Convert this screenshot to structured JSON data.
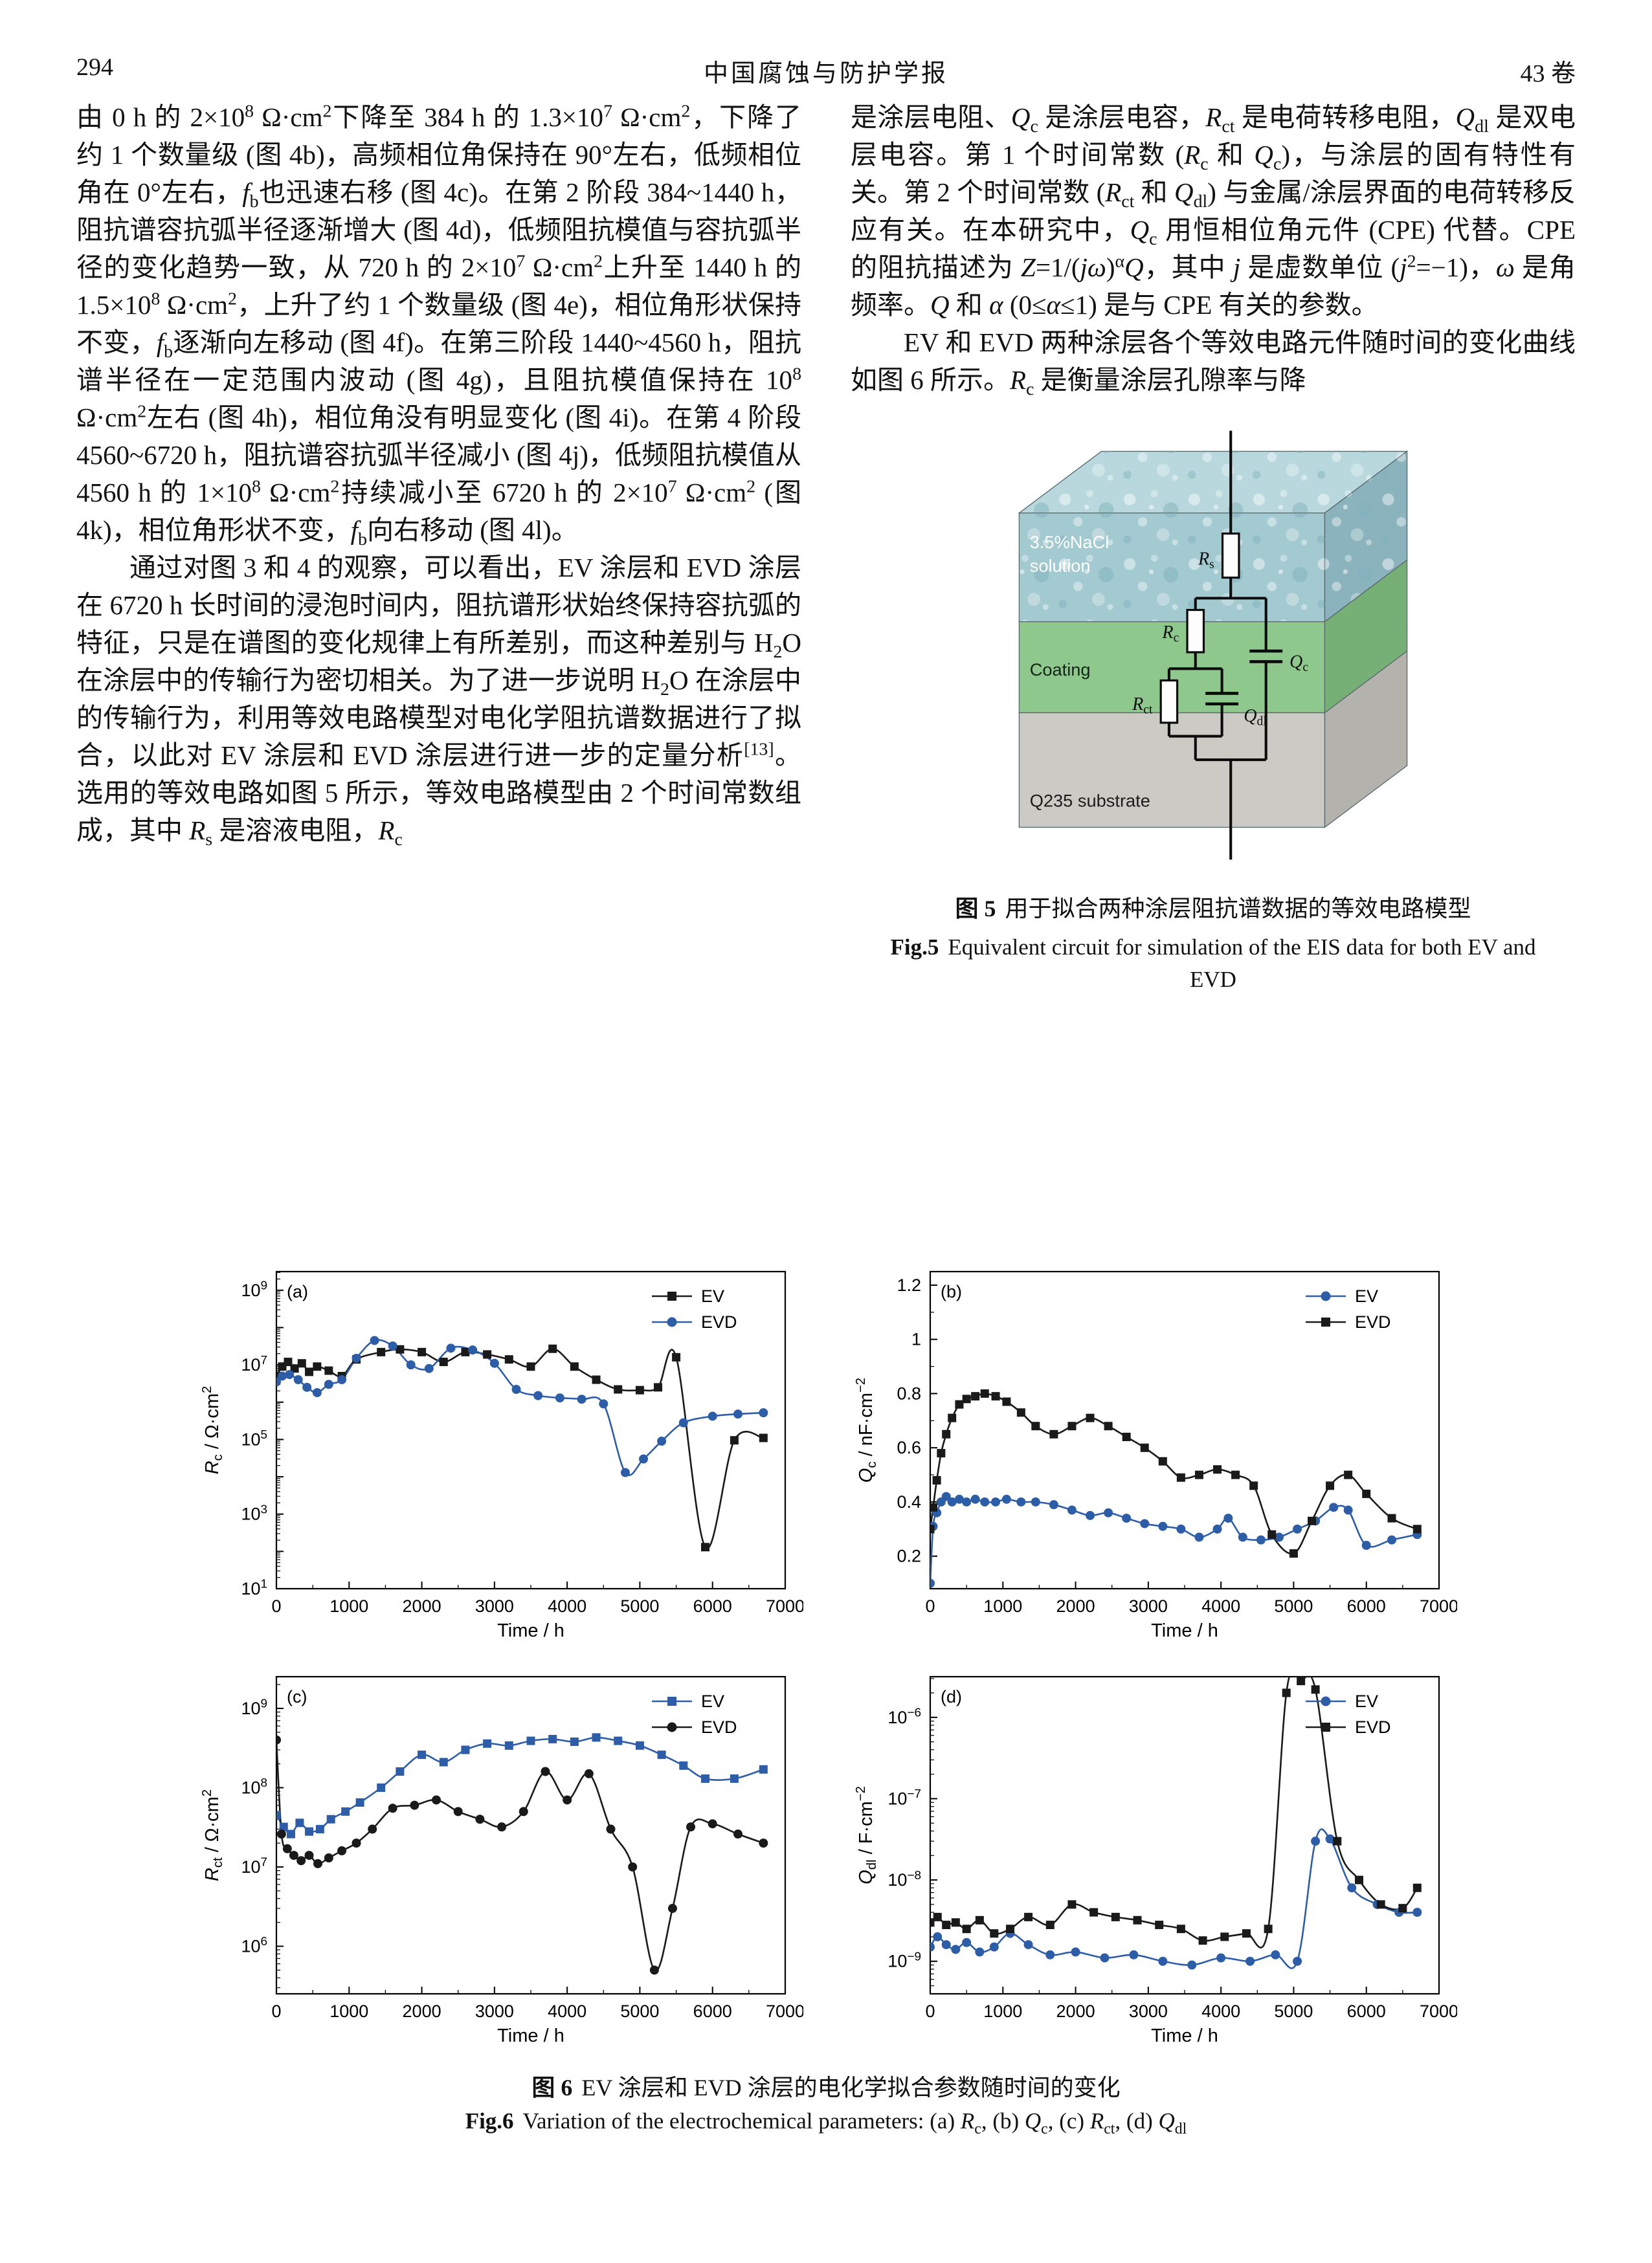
{
  "page": {
    "number": "294",
    "journal": "中国腐蚀与防护学报",
    "volume": "43 卷"
  },
  "article": {
    "left_column": {
      "p1": "由 0 h 的 2×10^{8} Ω·cm^{2}下降至 384 h 的 1.3×10^{7} Ω·cm^{2}，下降了约 1 个数量级 (图 4b)，高频相位角保持在 90°左右，低频相位角在 0°左右，~{f}_{b}也迅速右移 (图 4c)。在第 2 阶段 384~1440 h，阻抗谱容抗弧半径逐渐增大 (图 4d)，低频阻抗模值与容抗弧半径的变化趋势一致，从 720 h 的 2×10^{7} Ω·cm^{2}上升至 1440 h 的 1.5×10^{8} Ω·cm^{2}，上升了约 1 个数量级 (图 4e)，相位角形状保持不变，~{f}_{b}逐渐向左移动 (图 4f)。在第三阶段 1440~4560 h，阻抗谱半径在一定范围内波动 (图 4g)，且阻抗模值保持在 10^{8} Ω·cm^{2}左右 (图 4h)，相位角没有明显变化 (图 4i)。在第 4 阶段 4560~6720 h，阻抗谱容抗弧半径减小 (图 4j)，低频阻抗模值从 4560 h 的 1×10^{8} Ω·cm^{2}持续减小至 6720 h 的 2×10^{7} Ω·cm^{2} (图 4k)，相位角形状不变，~{f}_{b}向右移动 (图 4l)。",
      "p2": "通过对图 3 和 4 的观察，可以看出，EV 涂层和 EVD 涂层在 6720 h 长时间的浸泡时间内，阻抗谱形状始终保持容抗弧的特征，只是在谱图的变化规律上有所差别，而这种差别与 H_{2}O 在涂层中的传输行为密切相关。为了进一步说明 H_{2}O 在涂层中的传输行为，利用等效电路模型对电化学阻抗谱数据进行了拟合，以此对 EV 涂层和 EVD 涂层进行进一步的定量分析^{[13]}。选用的等效电路如图 5 所示，等效电路模型由 2 个时间常数组成，其中 ~{R}_{s} 是溶液电阻，~{R}_{c}"
    },
    "right_column": {
      "p1": "是涂层电阻、~{Q}_{c} 是涂层电容，~{R}_{ct} 是电荷转移电阻，~{Q}_{dl} 是双电层电容。第 1 个时间常数 (~{R}_{c} 和 ~{Q}_{c})，与涂层的固有特性有关。第 2 个时间常数 (~{R}_{ct} 和 ~{Q}_{dl}) 与金属/涂层界面的电荷转移反应有关。在本研究中，~{Q}_{c} 用恒相位角元件 (CPE) 代替。CPE 的阻抗描述为 ~{Z}=1/(~{j}~{ω})^{α}~{Q}，其中 ~{j} 是虚数单位 (~{j}^{2}=−1)，~{ω} 是角频率。~{Q} 和 ~{α} (0≤~{α}≤1) 是与 CPE 有关的参数。",
      "p2": "EV 和 EVD 两种涂层各个等效电路元件随时间的变化曲线如图 6 所示。~{R}_{c} 是衡量涂层孔隙率与降"
    }
  },
  "figure5": {
    "labels": {
      "solution_line1": "3.5%NaCl",
      "solution_line2": "solution",
      "coating": "Coating",
      "substrate": "Q235 substrate",
      "rs": "~{R}_{s}",
      "rc": "~{R}_{c}",
      "qc": "~{Q}_{c}",
      "rct": "~{R}_{ct}",
      "qdl": "~{Q}_{dl}"
    },
    "colors": {
      "solution_top": "#b9d8dd",
      "solution_front": "#a3c9d1",
      "solution_side": "#8bb3bd",
      "coating_front": "#8fc88d",
      "coating_side": "#77b076",
      "substrate_front": "#cbcac5",
      "substrate_side": "#b3b2ad"
    },
    "caption_zh_label": "图 5",
    "caption_zh_text": "用于拟合两种涂层阻抗谱数据的等效电路模型",
    "caption_en_label": "Fig.5",
    "caption_en_text": "Equivalent circuit for simulation of the EIS data for both EV and EVD"
  },
  "figure6": {
    "caption_zh_label": "图 6",
    "caption_zh_text": "EV 涂层和 EVD 涂层的电化学拟合参数随时间的变化",
    "caption_en_label": "Fig.6",
    "caption_en_text": "Variation of the electrochemical parameters: (a) ~{R}_{c}, (b) ~{Q}_{c}, (c) ~{R}_{ct}, (d) ~{Q}_{dl}"
  },
  "chart_data": [
    {
      "type": "scatter",
      "panel_label": "(a)",
      "xlabel": "Time / h",
      "ylabel": "~{R}_{c} / Ω·cm^{2}",
      "xlim": [
        0,
        7000
      ],
      "xticks": [
        0,
        1000,
        2000,
        3000,
        4000,
        5000,
        6000,
        7000
      ],
      "yscale": "log",
      "ylim_log": [
        1,
        9.5
      ],
      "ytick_exponents": [
        1,
        3,
        5,
        7,
        9
      ],
      "legend_position": "top-right",
      "series": [
        {
          "name": "EV",
          "color": "#1a1a1a",
          "marker": "square",
          "x": [
            0,
            80,
            160,
            250,
            350,
            450,
            560,
            720,
            900,
            1100,
            1440,
            1700,
            2000,
            2300,
            2600,
            2900,
            3200,
            3500,
            3800,
            4100,
            4400,
            4700,
            5000,
            5250,
            5500,
            5900,
            6300,
            6700
          ],
          "y": [
            5000000.0,
            9000000.0,
            12000000.0,
            8000000.0,
            11000000.0,
            6500000.0,
            9000000.0,
            7000000.0,
            5000000.0,
            14000000.0,
            22000000.0,
            26000000.0,
            22000000.0,
            12000000.0,
            22000000.0,
            19000000.0,
            14000000.0,
            9000000.0,
            27000000.0,
            9000000.0,
            4000000.0,
            2200000.0,
            2100000.0,
            2500000.0,
            16000000.0,
            130.0,
            95000.0,
            110000.0
          ]
        },
        {
          "name": "EVD",
          "color": "#2d5da7",
          "marker": "circle",
          "x": [
            0,
            80,
            180,
            300,
            420,
            560,
            720,
            900,
            1100,
            1350,
            1600,
            1850,
            2100,
            2400,
            2700,
            3000,
            3300,
            3600,
            3900,
            4200,
            4500,
            4800,
            5050,
            5300,
            5600,
            6000,
            6350,
            6700
          ],
          "y": [
            3500000.0,
            5000000.0,
            5500000.0,
            4000000.0,
            2500000.0,
            1800000.0,
            3000000.0,
            4000000.0,
            15000000.0,
            45000000.0,
            32000000.0,
            10000000.0,
            8000000.0,
            28000000.0,
            25000000.0,
            11000000.0,
            2200000.0,
            1500000.0,
            1300000.0,
            1200000.0,
            900000.0,
            13000.0,
            30000.0,
            90000.0,
            280000.0,
            420000.0,
            480000.0,
            520000.0
          ]
        }
      ]
    },
    {
      "type": "scatter",
      "panel_label": "(b)",
      "xlabel": "Time / h",
      "ylabel": "~{Q}_{c} / nF·cm^{−2}",
      "xlim": [
        0,
        7000
      ],
      "xticks": [
        0,
        1000,
        2000,
        3000,
        4000,
        5000,
        6000,
        7000
      ],
      "yscale": "linear",
      "ylim": [
        0.08,
        1.25
      ],
      "yticks": [
        0.2,
        0.4,
        0.6,
        0.8,
        1.0,
        1.2
      ],
      "yminor": [
        0.1,
        1.2,
        0.1
      ],
      "legend_position": "top-right",
      "series": [
        {
          "name": "EV",
          "color": "#2d5da7",
          "marker": "circle",
          "x": [
            0,
            40,
            90,
            150,
            220,
            300,
            400,
            500,
            620,
            750,
            900,
            1050,
            1250,
            1450,
            1700,
            1950,
            2200,
            2450,
            2700,
            2950,
            3200,
            3450,
            3700,
            3950,
            4100,
            4300,
            4550,
            4800,
            5050,
            5300,
            5550,
            5750,
            6000,
            6350,
            6700
          ],
          "y": [
            0.1,
            0.31,
            0.36,
            0.4,
            0.42,
            0.4,
            0.41,
            0.4,
            0.41,
            0.4,
            0.4,
            0.41,
            0.4,
            0.4,
            0.39,
            0.37,
            0.35,
            0.36,
            0.34,
            0.32,
            0.31,
            0.3,
            0.27,
            0.3,
            0.34,
            0.27,
            0.26,
            0.27,
            0.3,
            0.33,
            0.38,
            0.37,
            0.24,
            0.26,
            0.28
          ]
        },
        {
          "name": "EVD",
          "color": "#1a1a1a",
          "marker": "square",
          "x": [
            0,
            40,
            90,
            150,
            220,
            300,
            400,
            500,
            620,
            750,
            900,
            1050,
            1250,
            1450,
            1700,
            1950,
            2200,
            2450,
            2700,
            2950,
            3200,
            3450,
            3700,
            3950,
            4200,
            4450,
            4700,
            5000,
            5250,
            5500,
            5750,
            6000,
            6350,
            6700
          ],
          "y": [
            0.3,
            0.38,
            0.48,
            0.58,
            0.65,
            0.71,
            0.76,
            0.78,
            0.79,
            0.8,
            0.79,
            0.77,
            0.73,
            0.68,
            0.65,
            0.68,
            0.71,
            0.68,
            0.64,
            0.6,
            0.55,
            0.49,
            0.5,
            0.52,
            0.5,
            0.46,
            0.28,
            0.21,
            0.33,
            0.46,
            0.5,
            0.43,
            0.34,
            0.3
          ]
        }
      ]
    },
    {
      "type": "scatter",
      "panel_label": "(c)",
      "xlabel": "Time / h",
      "ylabel": "~{R}_{ct} / Ω·cm^{2}",
      "xlim": [
        0,
        7000
      ],
      "xticks": [
        0,
        1000,
        2000,
        3000,
        4000,
        5000,
        6000,
        7000
      ],
      "yscale": "log",
      "ylim_log": [
        5.4,
        9.4
      ],
      "ytick_exponents": [
        6,
        7,
        8,
        9
      ],
      "legend_position": "top-right",
      "series": [
        {
          "name": "EV",
          "color": "#2d5da7",
          "marker": "square",
          "x": [
            0,
            100,
            200,
            320,
            450,
            600,
            750,
            950,
            1150,
            1440,
            1700,
            2000,
            2300,
            2600,
            2900,
            3200,
            3500,
            3800,
            4100,
            4400,
            4700,
            5000,
            5300,
            5600,
            5900,
            6300,
            6700
          ],
          "y": [
            45000000.0,
            32000000.0,
            26000000.0,
            36000000.0,
            28000000.0,
            30000000.0,
            40000000.0,
            50000000.0,
            65000000.0,
            100000000.0,
            160000000.0,
            260000000.0,
            210000000.0,
            300000000.0,
            360000000.0,
            340000000.0,
            390000000.0,
            410000000.0,
            380000000.0,
            430000000.0,
            390000000.0,
            340000000.0,
            260000000.0,
            190000000.0,
            130000000.0,
            130000000.0,
            170000000.0
          ]
        },
        {
          "name": "EVD",
          "color": "#1a1a1a",
          "marker": "circle",
          "x": [
            0,
            70,
            150,
            240,
            340,
            450,
            570,
            720,
            900,
            1100,
            1320,
            1600,
            1900,
            2200,
            2500,
            2800,
            3100,
            3400,
            3700,
            4000,
            4300,
            4600,
            4900,
            5200,
            5450,
            5700,
            6000,
            6350,
            6700
          ],
          "y": [
            400000000.0,
            26000000.0,
            17000000.0,
            14000000.0,
            12000000.0,
            14000000.0,
            11000000.0,
            13000000.0,
            16000000.0,
            20000000.0,
            30000000.0,
            55000000.0,
            60000000.0,
            70000000.0,
            50000000.0,
            40000000.0,
            32000000.0,
            50000000.0,
            160000000.0,
            70000000.0,
            150000000.0,
            30000000.0,
            10000000.0,
            500000.0,
            3000000.0,
            32000000.0,
            35000000.0,
            26000000.0,
            20000000.0
          ]
        }
      ]
    },
    {
      "type": "scatter",
      "panel_label": "(d)",
      "xlabel": "Time / h",
      "ylabel": "~{Q}_{dl} / F·cm^{−2}",
      "xlim": [
        0,
        7000
      ],
      "xticks": [
        0,
        1000,
        2000,
        3000,
        4000,
        5000,
        6000,
        7000
      ],
      "yscale": "log",
      "ylim_log": [
        -9.4,
        -5.5
      ],
      "ytick_exponents": [
        -9,
        -8,
        -7,
        -6
      ],
      "legend_position": "top-right",
      "series": [
        {
          "name": "EV",
          "color": "#2d5da7",
          "marker": "circle",
          "x": [
            0,
            100,
            220,
            350,
            500,
            680,
            880,
            1100,
            1350,
            1650,
            2000,
            2400,
            2800,
            3200,
            3600,
            4000,
            4400,
            4750,
            5050,
            5300,
            5500,
            5800,
            6150,
            6450,
            6700
          ],
          "y": [
            1.5e-09,
            2e-09,
            1.6e-09,
            1.4e-09,
            1.7e-09,
            1.3e-09,
            1.5e-09,
            2.2e-09,
            1.6e-09,
            1.2e-09,
            1.3e-09,
            1.1e-09,
            1.2e-09,
            1e-09,
            9e-10,
            1.1e-09,
            1e-09,
            1.2e-09,
            1e-09,
            3e-08,
            3.2e-08,
            8e-09,
            5e-09,
            4e-09,
            4e-09
          ]
        },
        {
          "name": "EVD",
          "color": "#1a1a1a",
          "marker": "square",
          "x": [
            0,
            100,
            220,
            350,
            500,
            680,
            880,
            1100,
            1350,
            1650,
            1950,
            2250,
            2550,
            2850,
            3150,
            3450,
            3750,
            4050,
            4350,
            4650,
            4900,
            5100,
            5300,
            5600,
            5900,
            6200,
            6500,
            6700
          ],
          "y": [
            3e-09,
            3.5e-09,
            2.8e-09,
            3e-09,
            2.5e-09,
            3.2e-09,
            2.2e-09,
            2.5e-09,
            3.5e-09,
            2.8e-09,
            5e-09,
            4e-09,
            3.5e-09,
            3.2e-09,
            2.8e-09,
            2.5e-09,
            1.8e-09,
            2e-09,
            2.2e-09,
            2.5e-09,
            2e-06,
            2.8e-06,
            2.2e-06,
            3e-08,
            1e-08,
            5e-09,
            4.5e-09,
            8e-09
          ]
        }
      ]
    }
  ]
}
